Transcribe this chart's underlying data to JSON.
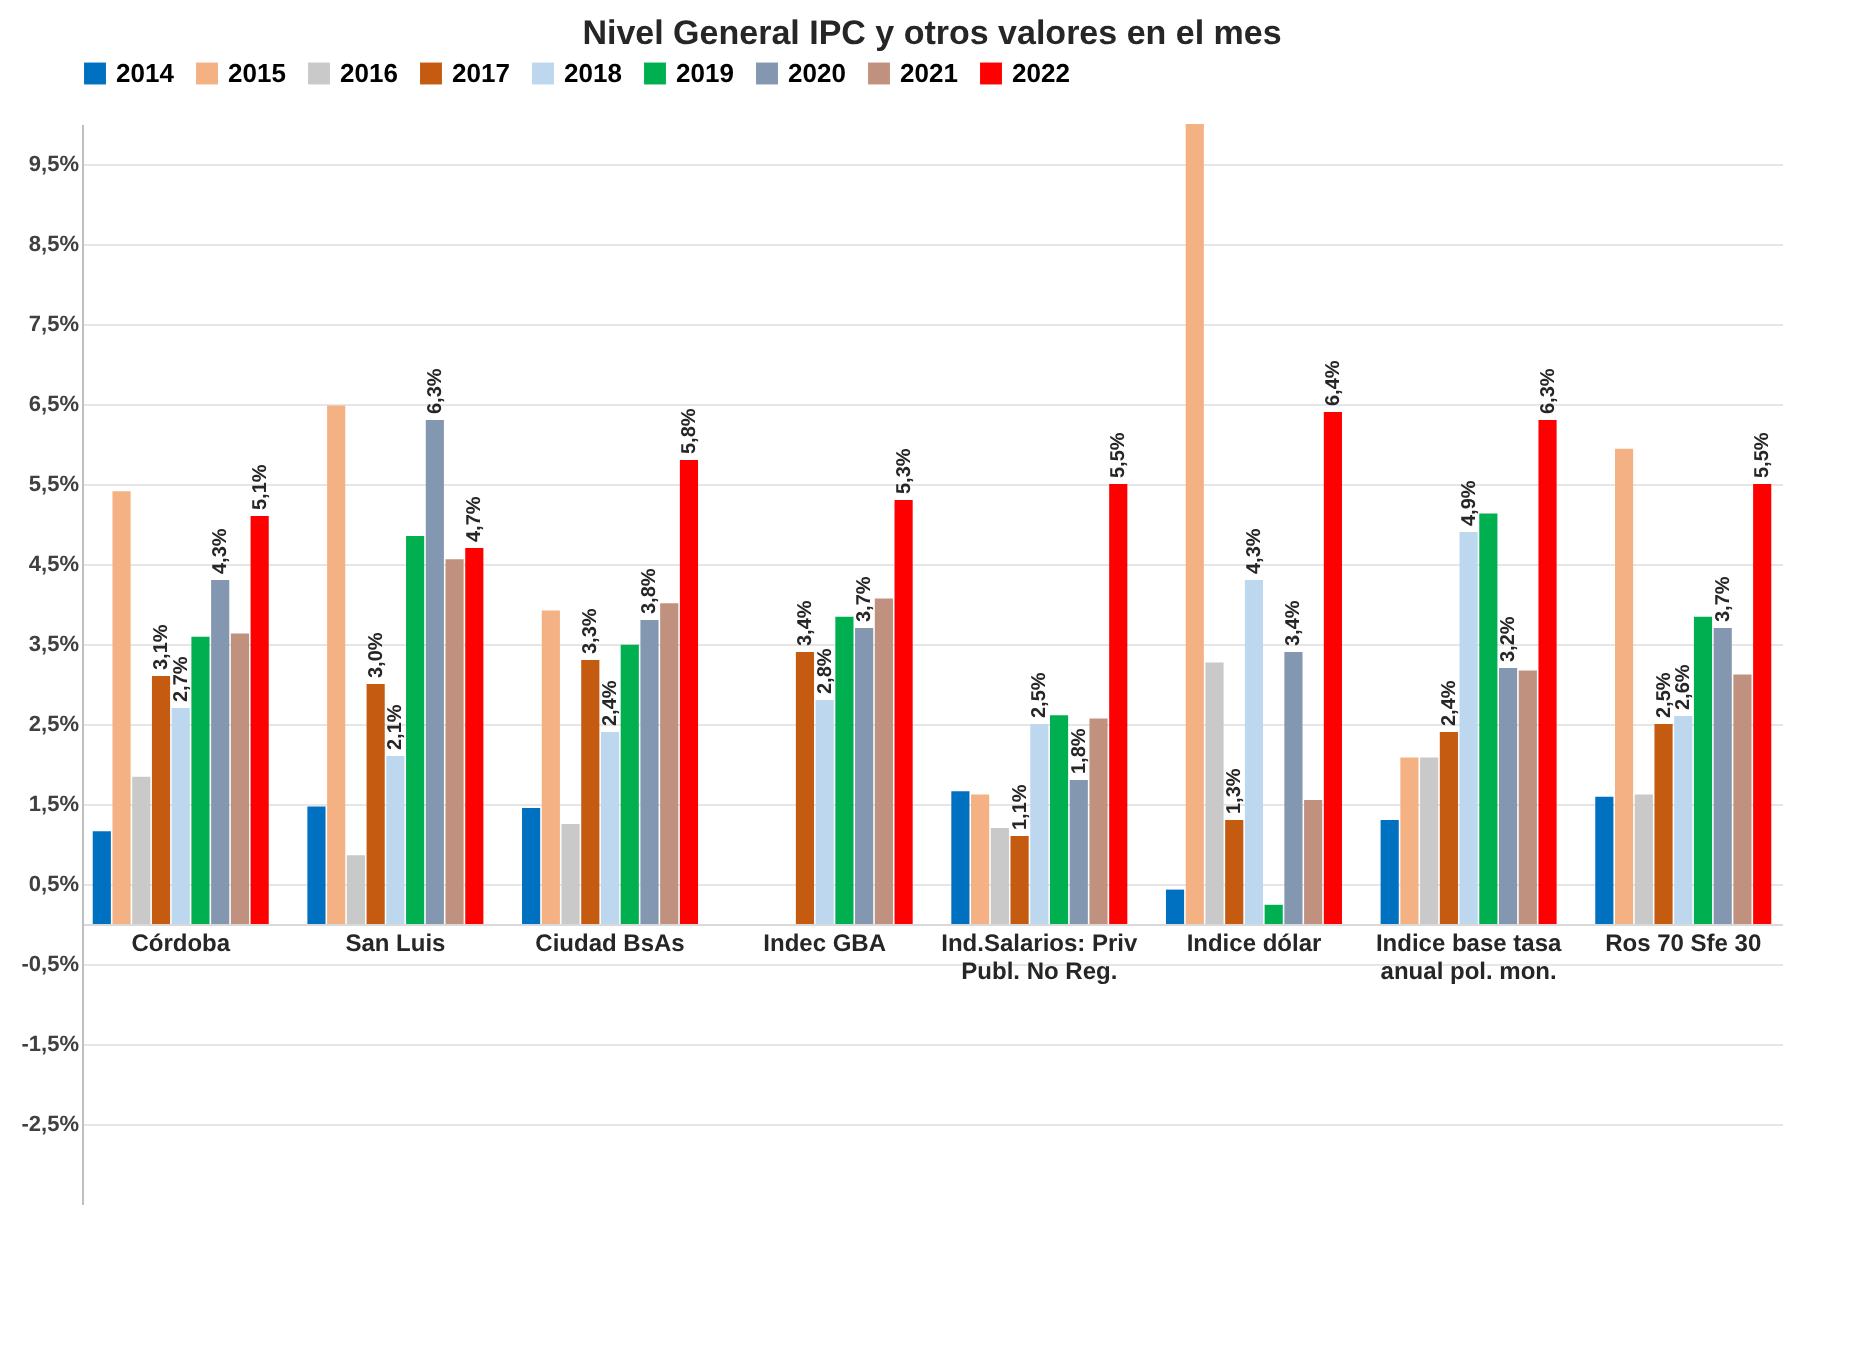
{
  "chart_data": {
    "type": "bar",
    "title": "Nivel General IPC y otros valores en el mes",
    "categories": [
      "Córdoba",
      "San Luis",
      "Ciudad BsAs",
      "Indec GBA",
      "Ind.Salarios: Priv Publ. No Reg.",
      "Indice dólar",
      "Indice base tasa anual pol. mon.",
      "Ros 70 Sfe 30"
    ],
    "series": [
      {
        "name": "2014",
        "color": "#0070c0",
        "values": [
          1.16,
          1.47,
          1.45,
          null,
          1.66,
          0.43,
          1.3,
          1.59
        ]
      },
      {
        "name": "2015",
        "color": "#f4b183",
        "values": [
          5.41,
          6.48,
          3.92,
          null,
          1.62,
          10,
          2.08,
          5.94
        ]
      },
      {
        "name": "2016",
        "color": "#c9c9c9",
        "values": [
          1.84,
          0.86,
          1.25,
          null,
          1.2,
          3.27,
          2.08,
          1.62
        ]
      },
      {
        "name": "2017",
        "color": "#c55a11",
        "values": [
          3.1,
          3.0,
          3.3,
          3.4,
          1.1,
          1.3,
          2.4,
          2.5
        ],
        "value_labels": [
          "3,1%",
          "3,0%",
          "3,3%",
          "3,4%",
          "1,1%",
          "1,3%",
          "2,4%",
          "2,5%"
        ]
      },
      {
        "name": "2018",
        "color": "#bdd7ee",
        "values": [
          2.7,
          2.1,
          2.4,
          2.8,
          2.5,
          4.3,
          4.9,
          2.6
        ],
        "value_labels": [
          "2,7%",
          "2,1%",
          "2,4%",
          "2,8%",
          "2,5%",
          "4,3%",
          "4,9%",
          "2,6%"
        ]
      },
      {
        "name": "2019",
        "color": "#00b050",
        "values": [
          3.59,
          4.85,
          3.49,
          3.84,
          2.61,
          0.24,
          5.13,
          3.84
        ]
      },
      {
        "name": "2020",
        "color": "#8497b0",
        "values": [
          4.3,
          6.3,
          3.8,
          3.7,
          1.8,
          3.4,
          3.2,
          3.7
        ],
        "value_labels": [
          "4,3%",
          "6,3%",
          "3,8%",
          "3,7%",
          "1,8%",
          "3,4%",
          "3,2%",
          "3,7%"
        ]
      },
      {
        "name": "2021",
        "color": "#c0917f",
        "values": [
          3.63,
          4.56,
          4.01,
          4.07,
          2.57,
          1.55,
          3.17,
          3.12
        ]
      },
      {
        "name": "2022",
        "color": "#ff0000",
        "values": [
          5.1,
          4.7,
          5.8,
          5.3,
          5.5,
          6.4,
          6.3,
          5.5
        ],
        "value_labels": [
          "5,1%",
          "4,7%",
          "5,8%",
          "5,3%",
          "5,5%",
          "6,4%",
          "6,3%",
          "5,5%"
        ]
      }
    ],
    "ylim": [
      -3.5,
      10
    ],
    "yticks": [
      {
        "value": -2.5,
        "label": "-2,5%"
      },
      {
        "value": -1.5,
        "label": "-1,5%"
      },
      {
        "value": -0.5,
        "label": "-0,5%"
      },
      {
        "value": 0.5,
        "label": "0,5%"
      },
      {
        "value": 1.5,
        "label": "1,5%"
      },
      {
        "value": 2.5,
        "label": "2,5%"
      },
      {
        "value": 3.5,
        "label": "3,5%"
      },
      {
        "value": 4.5,
        "label": "4,5%"
      },
      {
        "value": 5.5,
        "label": "5,5%"
      },
      {
        "value": 6.5,
        "label": "6,5%"
      },
      {
        "value": 7.5,
        "label": "7,5%"
      },
      {
        "value": 8.5,
        "label": "8,5%"
      },
      {
        "value": 9.5,
        "label": "9,5%"
      }
    ],
    "grid": "y",
    "legend": "top"
  }
}
